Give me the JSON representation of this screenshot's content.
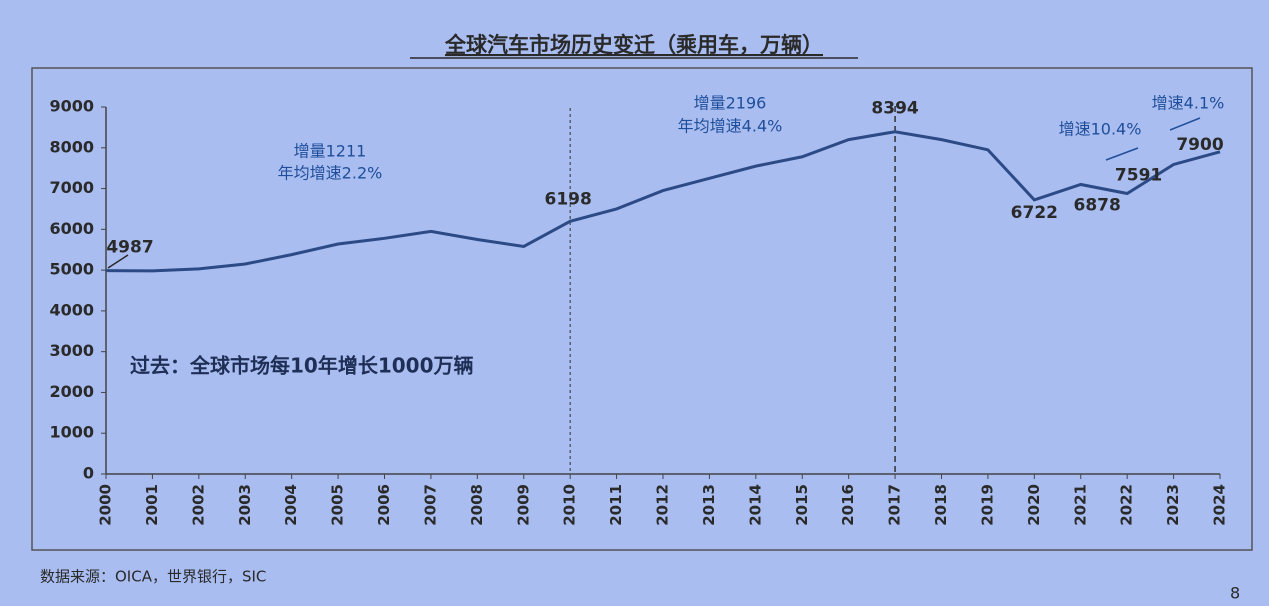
{
  "chart_data": {
    "type": "line",
    "title": "全球汽车市场历史变迁（乘用车，万辆）",
    "categories": [
      "2000",
      "2001",
      "2002",
      "2003",
      "2004",
      "2005",
      "2006",
      "2007",
      "2008",
      "2009",
      "2010",
      "2011",
      "2012",
      "2013",
      "2014",
      "2015",
      "2016",
      "2017",
      "2018",
      "2019",
      "2020",
      "2021",
      "2022",
      "2023",
      "2024"
    ],
    "values": [
      4987,
      4980,
      5030,
      5150,
      5380,
      5640,
      5780,
      5950,
      5750,
      5580,
      6198,
      6500,
      6950,
      7250,
      7550,
      7780,
      8200,
      8394,
      8200,
      7950,
      6722,
      7100,
      6878,
      7591,
      7900
    ],
    "color": "#2c4a86",
    "labeled_points": [
      0,
      10,
      17,
      20,
      22,
      23,
      24
    ],
    "reference_lines": [
      "2010",
      "2017"
    ],
    "ylim": [
      0,
      9000
    ],
    "yticks": [
      0,
      1000,
      2000,
      3000,
      4000,
      5000,
      6000,
      7000,
      8000,
      9000
    ],
    "annotations": [
      "增量1211",
      "年均增速2.2%",
      "增量2196",
      "年均增速4.4%",
      "增速10.4%",
      "增速4.1%",
      "过去：全球市场每10年增长1000万辆"
    ]
  },
  "source": "数据来源：OICA，世界银行，SIC",
  "page_number": "8"
}
